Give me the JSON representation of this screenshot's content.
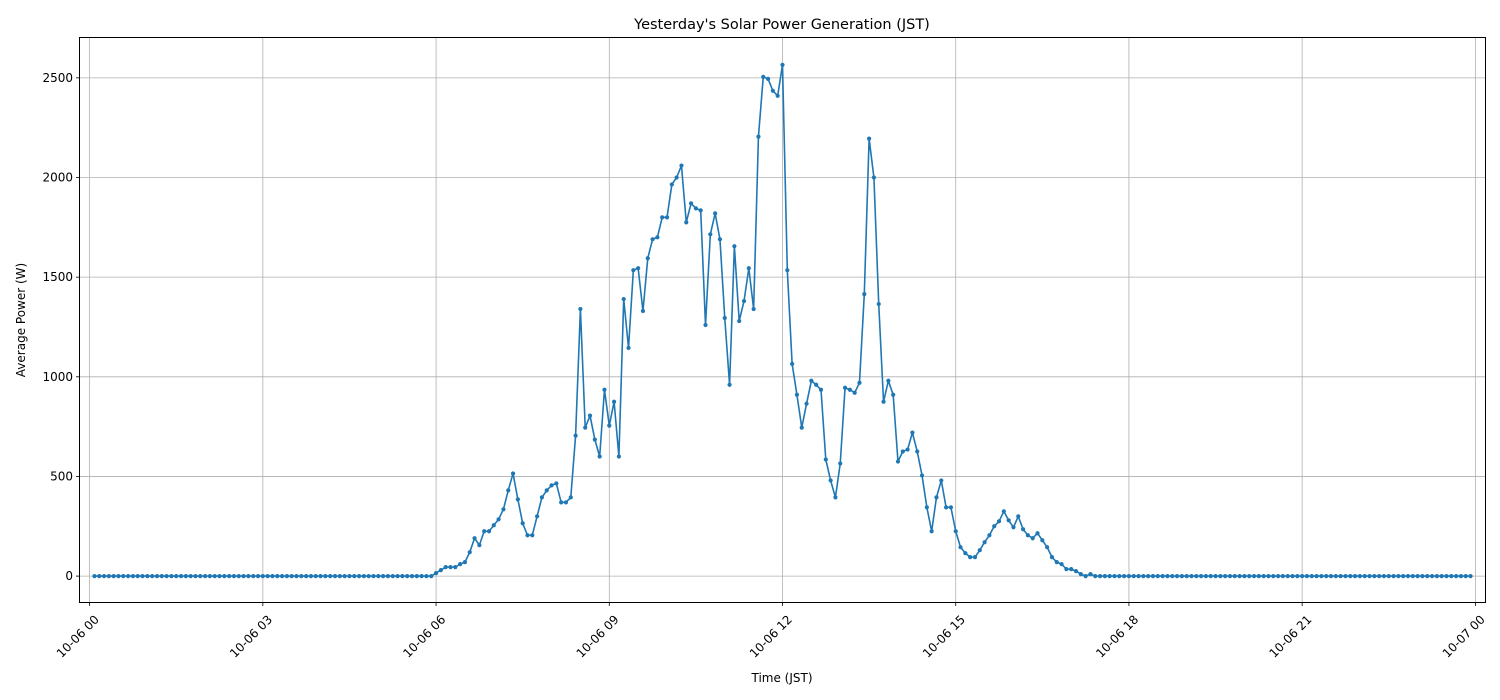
{
  "chart_data": {
    "type": "line",
    "title": "Yesterday's Solar Power Generation (JST)",
    "xlabel": "Time (JST)",
    "ylabel": "Average Power (W)",
    "x_range_minutes": [
      -10,
      1450
    ],
    "x_ticks": [
      {
        "minutes": 0,
        "label": "10-06 00"
      },
      {
        "minutes": 180,
        "label": "10-06 03"
      },
      {
        "minutes": 360,
        "label": "10-06 06"
      },
      {
        "minutes": 540,
        "label": "10-06 09"
      },
      {
        "minutes": 720,
        "label": "10-06 12"
      },
      {
        "minutes": 900,
        "label": "10-06 15"
      },
      {
        "minutes": 1080,
        "label": "10-06 18"
      },
      {
        "minutes": 1260,
        "label": "10-06 21"
      },
      {
        "minutes": 1440,
        "label": "10-07 00"
      }
    ],
    "ylim": [
      -130,
      2700
    ],
    "y_ticks": [
      0,
      500,
      1000,
      1500,
      2000,
      2500
    ],
    "grid": true,
    "legend": "none",
    "color": "#1f77b4",
    "series": [
      {
        "x_start_minutes": 5,
        "x_step_minutes": 5,
        "values": [
          0,
          0,
          0,
          0,
          0,
          0,
          0,
          0,
          0,
          0,
          0,
          0,
          0,
          0,
          0,
          0,
          0,
          0,
          0,
          0,
          0,
          0,
          0,
          0,
          0,
          0,
          0,
          0,
          0,
          0,
          0,
          0,
          0,
          0,
          0,
          0,
          0,
          0,
          0,
          0,
          0,
          0,
          0,
          0,
          0,
          0,
          0,
          0,
          0,
          0,
          0,
          0,
          0,
          0,
          0,
          0,
          0,
          0,
          0,
          0,
          0,
          0,
          0,
          0,
          0,
          0,
          0,
          0,
          0,
          0,
          0,
          15,
          30,
          45,
          45,
          45,
          60,
          70,
          120,
          190,
          155,
          225,
          225,
          255,
          285,
          335,
          430,
          515,
          385,
          265,
          205,
          205,
          300,
          395,
          430,
          455,
          465,
          370,
          370,
          395,
          705,
          1340,
          745,
          805,
          685,
          600,
          935,
          755,
          875,
          600,
          1390,
          1145,
          1535,
          1545,
          1330,
          1595,
          1690,
          1700,
          1800,
          1800,
          1965,
          2000,
          2060,
          1775,
          1870,
          1845,
          1835,
          1260,
          1715,
          1820,
          1690,
          1295,
          960,
          1655,
          1280,
          1380,
          1545,
          1340,
          2205,
          2505,
          2495,
          2435,
          2410,
          2565,
          1535,
          1065,
          910,
          745,
          865,
          980,
          960,
          935,
          585,
          480,
          395,
          565,
          945,
          935,
          920,
          970,
          1415,
          2195,
          2000,
          1365,
          875,
          980,
          910,
          575,
          625,
          635,
          720,
          625,
          505,
          345,
          225,
          395,
          480,
          345,
          345,
          225,
          145,
          115,
          95,
          95,
          130,
          170,
          205,
          250,
          275,
          325,
          280,
          245,
          300,
          235,
          205,
          190,
          215,
          180,
          145,
          95,
          70,
          60,
          35,
          35,
          25,
          10,
          0,
          10,
          0,
          0,
          0,
          0,
          0,
          0,
          0,
          0,
          0,
          0,
          0,
          0,
          0,
          0,
          0,
          0,
          0,
          0,
          0,
          0,
          0,
          0,
          0,
          0,
          0,
          0,
          0,
          0,
          0,
          0,
          0,
          0,
          0,
          0,
          0,
          0,
          0,
          0,
          0,
          0,
          0,
          0,
          0,
          0,
          0,
          0,
          0,
          0,
          0,
          0,
          0,
          0,
          0,
          0,
          0,
          0,
          0,
          0,
          0,
          0,
          0,
          0,
          0,
          0,
          0,
          0,
          0,
          0,
          0,
          0,
          0,
          0,
          0,
          0,
          0,
          0,
          0,
          0,
          0
        ]
      }
    ]
  }
}
